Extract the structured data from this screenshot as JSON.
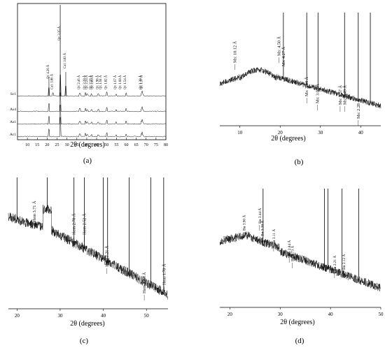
{
  "chart_data": [
    {
      "panel": "(a)",
      "type": "line",
      "xlabel": "2θ (degrees)",
      "xlim": [
        5,
        80
      ],
      "xticks": [
        "10",
        "15",
        "20",
        "25",
        "30",
        "35",
        "40",
        "45",
        "50",
        "55",
        "60",
        "65",
        "70",
        "75",
        "80"
      ],
      "series": [
        {
          "name": "Sc1",
          "label_visible": true
        },
        {
          "name": "As4",
          "label_visible": true
        },
        {
          "name": "As1",
          "label_visible": true
        },
        {
          "name": "Ac1",
          "label_visible": true
        }
      ],
      "peaks": [
        {
          "x": 20.9,
          "label": "Qt: 4.26 Å"
        },
        {
          "x": 22.9,
          "label": "Cal: 3.86 Å"
        },
        {
          "x": 26.6,
          "label": "Qt: 3.35 Å"
        },
        {
          "x": 29.4,
          "label": "Cal: 3.03 Å"
        },
        {
          "x": 36.5,
          "label": "Qt: 2.46 Å"
        },
        {
          "x": 39.4,
          "label": "Qt: 2.28 Å"
        },
        {
          "x": 40.3,
          "label": "Qt: 2.24 Å"
        },
        {
          "x": 42.4,
          "label": "Qt: 2.13 Å"
        },
        {
          "x": 43.2,
          "label": "Qt: 2.09 Å"
        },
        {
          "x": 45.8,
          "label": "Qt: 1.98 Å"
        },
        {
          "x": 47.5,
          "label": "Qt: 1.91 Å"
        },
        {
          "x": 50.1,
          "label": "Qt: 1.82 Å"
        },
        {
          "x": 54.9,
          "label": "Qt: 1.67 Å"
        },
        {
          "x": 57.4,
          "label": "Qt: 1.60 Å"
        },
        {
          "x": 59.9,
          "label": "Qt: 1.54 Å"
        },
        {
          "x": 67.7,
          "label": "Qt: 1.38 Å"
        },
        {
          "x": 68.2,
          "label": "Qt: 1.37 Å"
        }
      ]
    },
    {
      "panel": "(b)",
      "type": "line",
      "xlabel": "2θ (degrees)",
      "xlim": [
        5,
        45
      ],
      "xticks": [
        "10",
        "20",
        "30",
        "40"
      ],
      "annotations": [
        {
          "x": 8.7,
          "label": "Ms: 10.12 Å"
        },
        {
          "x": 19.7,
          "label": "Ms: 4.50 Å"
        },
        {
          "x": 20.8,
          "label": "Ms: 4.27 Å"
        },
        {
          "x": 26.6,
          "label": "Ms: 3.34 Å"
        },
        {
          "x": 29.3,
          "label": "Ms: 3.04 Å"
        },
        {
          "x": 34.9,
          "label": "Ms: 2.57 Å"
        },
        {
          "x": 36.0,
          "label": "Ms: 2.49 Å"
        },
        {
          "x": 39.4,
          "label": "Ms: 2.28 Å"
        }
      ]
    },
    {
      "panel": "(c)",
      "type": "line",
      "xlabel": "2θ (degrees)",
      "xlim": [
        18,
        55
      ],
      "xticks": [
        "20",
        "30",
        "40",
        "50"
      ],
      "annotations": [
        {
          "x": 24.0,
          "label": "Hem 3.71 Å"
        },
        {
          "x": 33.2,
          "label": "Hem 2.70 Å"
        },
        {
          "x": 35.6,
          "label": "Hem 2.52 Å"
        },
        {
          "x": 40.8,
          "label": "Hem 2.21 Å"
        },
        {
          "x": 49.5,
          "label": "Hem 1.84 Å"
        },
        {
          "x": 54.1,
          "label": "Hem 1.70 Å"
        }
      ]
    },
    {
      "panel": "(d)",
      "type": "line",
      "xlabel": "2θ (degrees)",
      "xlim": [
        18,
        50
      ],
      "xticks": [
        "20",
        "30",
        "40",
        "50"
      ],
      "annotations": [
        {
          "x": 22.8,
          "label": "Bn 3.90 Å"
        },
        {
          "x": 25.9,
          "label": "Bn 3.44 Å"
        },
        {
          "x": 26.4,
          "label": "Bn 3.38 Å"
        },
        {
          "x": 28.7,
          "label": "Bn 3.11 Å"
        },
        {
          "x": 31.8,
          "label": "Bn 2.84 Å"
        },
        {
          "x": 32.4,
          "label": "Bn 2.73 Å"
        },
        {
          "x": 40.8,
          "label": "Bn 2.21 Å"
        },
        {
          "x": 42.6,
          "label": "Bn 2.12 Å"
        }
      ]
    }
  ]
}
